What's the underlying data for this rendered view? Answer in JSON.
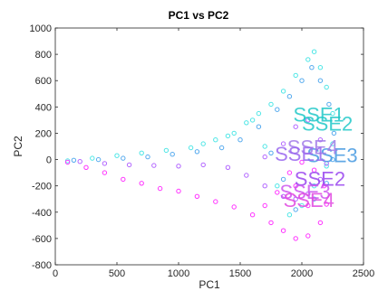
{
  "chart_data": {
    "type": "scatter",
    "title": "PC1 vs PC2",
    "xlabel": "PC1",
    "ylabel": "PC2",
    "xlim": [
      0,
      2500
    ],
    "ylim": [
      -800,
      1000
    ],
    "xticks": [
      0,
      500,
      1000,
      1500,
      2000,
      2500
    ],
    "yticks": [
      -800,
      -600,
      -400,
      -200,
      0,
      200,
      400,
      600,
      800,
      1000
    ],
    "grid": false,
    "marker": "open-circle",
    "series": [
      {
        "color": "#4ee6e6",
        "points": [
          [
            100,
            -10
          ],
          [
            300,
            10
          ],
          [
            500,
            30
          ],
          [
            700,
            50
          ],
          [
            900,
            70
          ],
          [
            1100,
            90
          ],
          [
            1300,
            150
          ],
          [
            1450,
            200
          ],
          [
            1550,
            280
          ],
          [
            1650,
            350
          ],
          [
            1750,
            420
          ],
          [
            1850,
            520
          ],
          [
            1950,
            640
          ],
          [
            2050,
            760
          ],
          [
            2100,
            820
          ],
          [
            2150,
            700
          ],
          [
            2200,
            550
          ],
          [
            2250,
            350
          ],
          [
            2250,
            120
          ],
          [
            2200,
            -50
          ],
          [
            2100,
            -200
          ],
          [
            2000,
            -350
          ],
          [
            1900,
            -420
          ],
          [
            1800,
            -200
          ],
          [
            1700,
            100
          ],
          [
            1600,
            300
          ],
          [
            1400,
            180
          ],
          [
            1200,
            120
          ]
        ]
      },
      {
        "color": "#55aaee",
        "points": [
          [
            150,
            -5
          ],
          [
            350,
            0
          ],
          [
            550,
            10
          ],
          [
            750,
            20
          ],
          [
            950,
            40
          ],
          [
            1150,
            60
          ],
          [
            1350,
            90
          ],
          [
            1500,
            150
          ],
          [
            1650,
            250
          ],
          [
            1800,
            380
          ],
          [
            1900,
            480
          ],
          [
            2000,
            600
          ],
          [
            2080,
            700
          ],
          [
            2150,
            600
          ],
          [
            2220,
            420
          ],
          [
            2260,
            200
          ],
          [
            2250,
            0
          ],
          [
            2200,
            -180
          ],
          [
            2100,
            -300
          ],
          [
            1950,
            -380
          ],
          [
            1850,
            -150
          ],
          [
            1750,
            50
          ]
        ]
      },
      {
        "color": "#b266ff",
        "points": [
          [
            200,
            -15
          ],
          [
            400,
            -30
          ],
          [
            600,
            -40
          ],
          [
            800,
            -45
          ],
          [
            1000,
            -50
          ],
          [
            1200,
            -40
          ],
          [
            1400,
            -60
          ],
          [
            1550,
            -120
          ],
          [
            1700,
            -200
          ],
          [
            1850,
            -280
          ],
          [
            1950,
            -300
          ],
          [
            2050,
            -260
          ],
          [
            2150,
            -150
          ],
          [
            2200,
            -30
          ],
          [
            2150,
            150
          ],
          [
            2050,
            300
          ],
          [
            1950,
            250
          ],
          [
            1850,
            120
          ],
          [
            1700,
            20
          ]
        ]
      },
      {
        "color": "#ff33ff",
        "points": [
          [
            100,
            -20
          ],
          [
            250,
            -60
          ],
          [
            400,
            -100
          ],
          [
            550,
            -150
          ],
          [
            700,
            -180
          ],
          [
            850,
            -220
          ],
          [
            1000,
            -240
          ],
          [
            1150,
            -280
          ],
          [
            1300,
            -320
          ],
          [
            1450,
            -360
          ],
          [
            1600,
            -420
          ],
          [
            1750,
            -480
          ],
          [
            1850,
            -540
          ],
          [
            1950,
            -600
          ],
          [
            2050,
            -580
          ],
          [
            2150,
            -480
          ],
          [
            2200,
            -340
          ],
          [
            2180,
            -200
          ],
          [
            2100,
            -80
          ],
          [
            2000,
            -20
          ],
          [
            1900,
            -100
          ],
          [
            1800,
            -250
          ],
          [
            1700,
            -350
          ],
          [
            1950,
            -200
          ],
          [
            2050,
            -350
          ]
        ]
      }
    ],
    "annotations": [
      {
        "text": "SSE1",
        "x": 1930,
        "y": 290,
        "color": "#20c8c8"
      },
      {
        "text": "SSE2",
        "x": 2000,
        "y": 220,
        "color": "#20c8c8"
      },
      {
        "text": "SSE3",
        "x": 2040,
        "y": -20,
        "color": "#4499e0"
      },
      {
        "text": "SSE4",
        "x": 1880,
        "y": 40,
        "color": "#a27be8"
      },
      {
        "text": "SSE1",
        "x": 1780,
        "y": -10,
        "color": "#9966ee"
      },
      {
        "text": "SSE2",
        "x": 1940,
        "y": -200,
        "color": "#9944ee"
      },
      {
        "text": "SSE3",
        "x": 1820,
        "y": -300,
        "color": "#cc55ee"
      },
      {
        "text": "SSE4",
        "x": 1850,
        "y": -360,
        "color": "#e048e0"
      }
    ]
  }
}
